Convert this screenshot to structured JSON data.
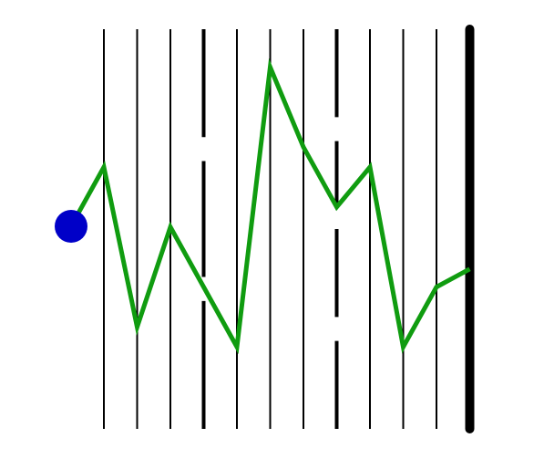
{
  "scene": {
    "background_color": "#ffffff",
    "line_color": "#000000",
    "path_color": "#109c10",
    "ball_color": "#0000c8"
  },
  "lanes": [
    {
      "index": 0,
      "style": "thin",
      "gaps": []
    },
    {
      "index": 1,
      "style": "thin",
      "gaps": []
    },
    {
      "index": 2,
      "style": "thin",
      "gaps": []
    },
    {
      "index": 3,
      "style": "thick",
      "gaps": [
        [
          0.27,
          0.33
        ],
        [
          0.62,
          0.68
        ]
      ]
    },
    {
      "index": 4,
      "style": "thin",
      "gaps": []
    },
    {
      "index": 5,
      "style": "thin",
      "gaps": []
    },
    {
      "index": 6,
      "style": "thin",
      "gaps": []
    },
    {
      "index": 7,
      "style": "thick",
      "gaps": [
        [
          0.22,
          0.28
        ],
        [
          0.44,
          0.5
        ],
        [
          0.72,
          0.78
        ]
      ]
    },
    {
      "index": 8,
      "style": "thin",
      "gaps": []
    },
    {
      "index": 9,
      "style": "thin",
      "gaps": []
    },
    {
      "index": 10,
      "style": "thin",
      "gaps": []
    },
    {
      "index": 11,
      "style": "wall",
      "gaps": []
    }
  ],
  "ball": {
    "lane": -1,
    "level": 0.495
  },
  "path_levels": [
    0.495,
    0.345,
    0.745,
    0.495,
    0.645,
    0.795,
    0.095,
    0.295,
    0.445,
    0.345,
    0.795,
    0.645,
    0.6
  ]
}
